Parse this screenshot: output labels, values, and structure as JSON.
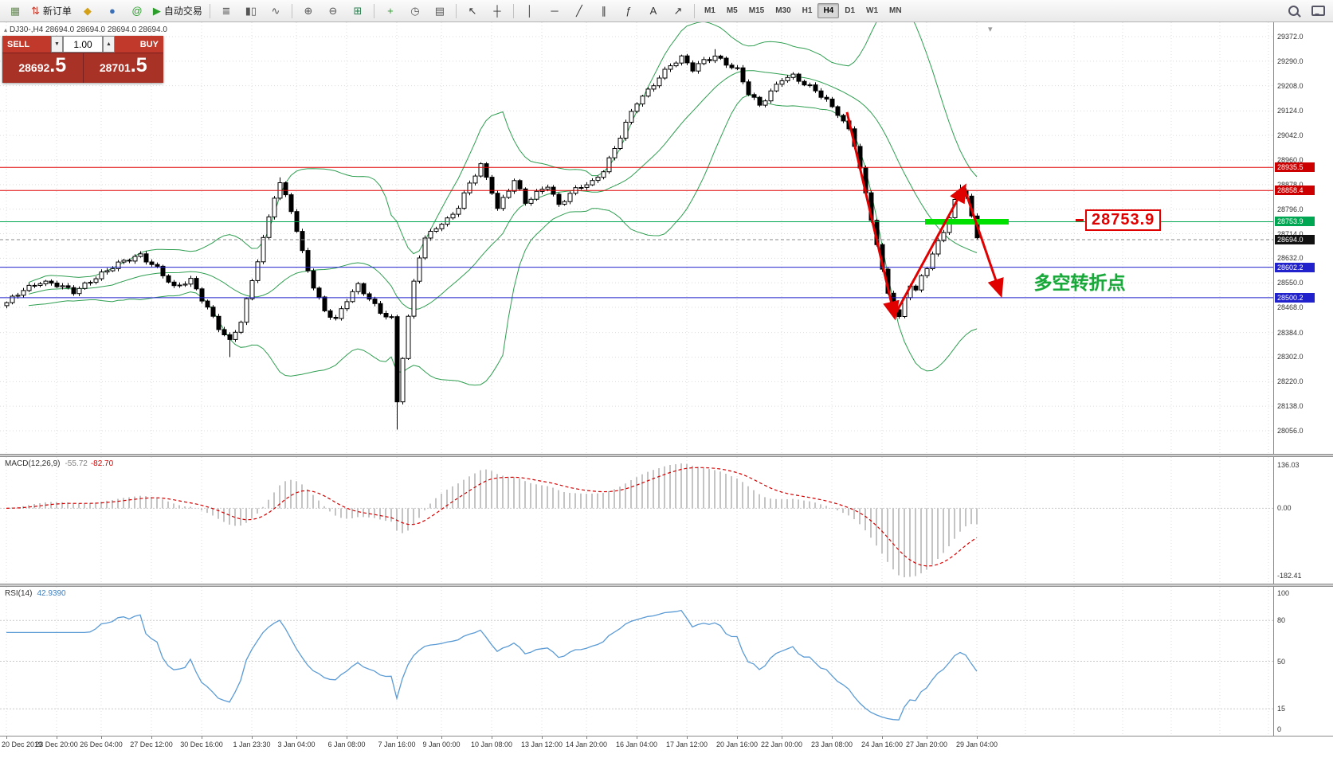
{
  "toolbar": {
    "new_order_label": "新订单",
    "autotrading_label": "自动交易",
    "timeframes": [
      "M1",
      "M5",
      "M15",
      "M30",
      "H1",
      "H4",
      "D1",
      "W1",
      "MN"
    ],
    "active_timeframe": "H4",
    "items": [
      {
        "t": "icon",
        "name": "new-chart-icon",
        "g": "▦",
        "c": "#6a8a5a"
      },
      {
        "t": "labeled",
        "name": "new-order-button",
        "bind": "new_order_label",
        "g": "⇅",
        "c": "#c0392b"
      },
      {
        "t": "icon",
        "name": "market-watch-icon",
        "g": "◆",
        "c": "#d4a017"
      },
      {
        "t": "icon",
        "name": "data-window-icon",
        "g": "●",
        "c": "#3b6fb5"
      },
      {
        "t": "icon",
        "name": "community-icon",
        "g": "@",
        "c": "#2a9d2a"
      },
      {
        "t": "labeled",
        "name": "autotrading-button",
        "bind": "autotrading_label",
        "g": "▶",
        "c": "#2a9d2a"
      },
      {
        "t": "sep"
      },
      {
        "t": "icon",
        "name": "bar-chart-icon",
        "g": "≣",
        "c": "#555555"
      },
      {
        "t": "icon",
        "name": "candlestick-chart-icon",
        "g": "▮▯",
        "c": "#555555"
      },
      {
        "t": "icon",
        "name": "line-chart-icon",
        "g": "∿",
        "c": "#555555"
      },
      {
        "t": "sep"
      },
      {
        "t": "icon",
        "name": "zoom-in-icon",
        "g": "⊕",
        "c": "#555555"
      },
      {
        "t": "icon",
        "name": "zoom-out-icon",
        "g": "⊖",
        "c": "#555555"
      },
      {
        "t": "icon",
        "name": "tile-windows-icon",
        "g": "⊞",
        "c": "#2a7d4f"
      },
      {
        "t": "sep"
      },
      {
        "t": "icon",
        "name": "indicators-icon",
        "g": "+",
        "c": "#2a9d2a"
      },
      {
        "t": "icon",
        "name": "periods-icon",
        "g": "◷",
        "c": "#555555"
      },
      {
        "t": "icon",
        "name": "templates-icon",
        "g": "▤",
        "c": "#555555"
      },
      {
        "t": "sep"
      },
      {
        "t": "icon",
        "name": "cursor-icon",
        "g": "↖",
        "c": "#333333"
      },
      {
        "t": "icon",
        "name": "crosshair-icon",
        "g": "┼",
        "c": "#333333"
      },
      {
        "t": "sep"
      },
      {
        "t": "icon",
        "name": "vertical-line-icon",
        "g": "│",
        "c": "#333333"
      },
      {
        "t": "icon",
        "name": "horizontal-line-icon",
        "g": "─",
        "c": "#333333"
      },
      {
        "t": "icon",
        "name": "trendline-icon",
        "g": "╱",
        "c": "#333333"
      },
      {
        "t": "icon",
        "name": "equidistant-channel-icon",
        "g": "∥",
        "c": "#333333"
      },
      {
        "t": "icon",
        "name": "fibonacci-icon",
        "g": "ƒ",
        "c": "#333333"
      },
      {
        "t": "icon",
        "name": "text-label-icon",
        "g": "A",
        "c": "#333333"
      },
      {
        "t": "icon",
        "name": "arrows-tool-icon",
        "g": "↗",
        "c": "#333333"
      },
      {
        "t": "sep"
      },
      {
        "t": "tfgroup"
      },
      {
        "t": "spacer"
      },
      {
        "t": "search"
      },
      {
        "t": "chat"
      }
    ]
  },
  "symbol_bar": {
    "text": "DJ30-,H4  28694.0 28694.0 28694.0 28694.0"
  },
  "order_panel": {
    "sell_label": "SELL",
    "buy_label": "BUY",
    "volume": "1.00",
    "sell_price": "28692.5",
    "buy_price": "28701.5"
  },
  "price_axis": {
    "labels": [
      "29372.0",
      "29290.0",
      "29208.0",
      "29124.0",
      "29042.0",
      "28960.0",
      "28878.0",
      "28796.0",
      "28714.0",
      "28632.0",
      "28550.0",
      "28468.0",
      "28384.0",
      "28302.0",
      "28220.0",
      "28138.0",
      "28056.0"
    ]
  },
  "time_axis": {
    "labels": [
      "20 Dec 2019",
      "23 Dec 20:00",
      "26 Dec 04:00",
      "27 Dec 12:00",
      "30 Dec 16:00",
      "1 Jan 23:30",
      "3 Jan 04:00",
      "6 Jan 08:00",
      "7 Jan 16:00",
      "9 Jan 00:00",
      "10 Jan 08:00",
      "13 Jan 12:00",
      "14 Jan 20:00",
      "16 Jan 04:00",
      "17 Jan 12:00",
      "20 Jan 16:00",
      "22 Jan 00:00",
      "23 Jan 08:00",
      "24 Jan 16:00",
      "27 Jan 20:00",
      "29 Jan 04:00"
    ]
  },
  "macd": {
    "name": "MACD(12,26,9)",
    "value_main": "-55.72",
    "value_signal": "-82.70",
    "scale_top": "136.03",
    "scale_zero": "0.00",
    "scale_bottom": "-182.41"
  },
  "rsi": {
    "name": "RSI(14)",
    "value": "42.9390",
    "scale": [
      "100",
      "80",
      "50",
      "15",
      "0"
    ],
    "levels": [
      80,
      50,
      15
    ]
  },
  "annotations": {
    "turning_point": "多空转折点",
    "price_callout": "28753.9"
  },
  "bid": {
    "price": 28694.0,
    "label": "28694.0"
  },
  "colors": {
    "candle_up": "#ffffff",
    "candle_down": "#000000",
    "candle_stroke": "#000000",
    "bollinger": "#2e9e50",
    "grid": "#dcdcdc",
    "macd_hist": "#c4c4c4",
    "macd_signal": "#d40000",
    "rsi_line": "#5b9bd5",
    "arrow": "#e00000",
    "highlight": "#00e000",
    "hline_red": "#e00000",
    "hline_green": "#00a651",
    "hline_blue": "#2222cc",
    "bid_tag": "#111111"
  },
  "chart_data": {
    "type": "candlestick",
    "symbol": "DJ30-",
    "timeframe": "H4",
    "price_range": [
      28056,
      29372
    ],
    "candle_count": 175,
    "close_waypoints": [
      [
        0,
        28480
      ],
      [
        3,
        28530
      ],
      [
        6,
        28555
      ],
      [
        9,
        28540
      ],
      [
        12,
        28520
      ],
      [
        15,
        28560
      ],
      [
        18,
        28590
      ],
      [
        21,
        28620
      ],
      [
        24,
        28645
      ],
      [
        27,
        28600
      ],
      [
        30,
        28530
      ],
      [
        33,
        28560
      ],
      [
        36,
        28470
      ],
      [
        38,
        28400
      ],
      [
        40,
        28350
      ],
      [
        42,
        28420
      ],
      [
        44,
        28560
      ],
      [
        46,
        28700
      ],
      [
        48,
        28840
      ],
      [
        49,
        28880
      ],
      [
        51,
        28790
      ],
      [
        53,
        28650
      ],
      [
        55,
        28540
      ],
      [
        57,
        28460
      ],
      [
        59,
        28425
      ],
      [
        61,
        28490
      ],
      [
        63,
        28540
      ],
      [
        65,
        28500
      ],
      [
        67,
        28455
      ],
      [
        69,
        28430
      ],
      [
        70,
        28150
      ],
      [
        71,
        28300
      ],
      [
        72,
        28430
      ],
      [
        73,
        28550
      ],
      [
        74,
        28640
      ],
      [
        75,
        28700
      ],
      [
        77,
        28740
      ],
      [
        79,
        28760
      ],
      [
        81,
        28800
      ],
      [
        83,
        28880
      ],
      [
        85,
        28945
      ],
      [
        87,
        28860
      ],
      [
        88,
        28800
      ],
      [
        90,
        28860
      ],
      [
        91,
        28890
      ],
      [
        93,
        28815
      ],
      [
        95,
        28850
      ],
      [
        97,
        28880
      ],
      [
        99,
        28810
      ],
      [
        101,
        28845
      ],
      [
        103,
        28870
      ],
      [
        105,
        28885
      ],
      [
        107,
        28930
      ],
      [
        109,
        29000
      ],
      [
        111,
        29080
      ],
      [
        113,
        29150
      ],
      [
        115,
        29190
      ],
      [
        117,
        29240
      ],
      [
        119,
        29280
      ],
      [
        121,
        29300
      ],
      [
        123,
        29260
      ],
      [
        125,
        29290
      ],
      [
        127,
        29310
      ],
      [
        129,
        29285
      ],
      [
        131,
        29260
      ],
      [
        133,
        29180
      ],
      [
        135,
        29140
      ],
      [
        137,
        29190
      ],
      [
        139,
        29235
      ],
      [
        141,
        29240
      ],
      [
        143,
        29210
      ],
      [
        145,
        29190
      ],
      [
        147,
        29160
      ],
      [
        149,
        29120
      ],
      [
        151,
        29060
      ],
      [
        152,
        29010
      ],
      [
        153,
        28930
      ],
      [
        154,
        28840
      ],
      [
        155,
        28760
      ],
      [
        156,
        28680
      ],
      [
        157,
        28590
      ],
      [
        158,
        28520
      ],
      [
        159,
        28470
      ],
      [
        160,
        28435
      ],
      [
        161,
        28500
      ],
      [
        162,
        28545
      ],
      [
        163,
        28520
      ],
      [
        164,
        28565
      ],
      [
        165,
        28600
      ],
      [
        166,
        28645
      ],
      [
        168,
        28725
      ],
      [
        170,
        28825
      ],
      [
        171,
        28862
      ],
      [
        172,
        28845
      ],
      [
        173,
        28765
      ],
      [
        174,
        28694
      ]
    ],
    "wick_overrides": [
      [
        40,
        "low",
        28302
      ],
      [
        49,
        "high",
        28902
      ],
      [
        70,
        "low",
        28060
      ],
      [
        127,
        "high",
        29330
      ],
      [
        171,
        "high",
        28878
      ]
    ],
    "bollinger": {
      "period": 20,
      "deviation": 2
    },
    "macd": {
      "fast": 12,
      "slow": 26,
      "signal": 9
    },
    "rsi": {
      "period": 14
    },
    "hlines": [
      {
        "price": 28935.5,
        "label": "28935.5",
        "color": "#e00000"
      },
      {
        "price": 28858.4,
        "label": "28858.4",
        "color": "#e00000"
      },
      {
        "price": 28753.9,
        "label": "28753.9",
        "color": "#00a651"
      },
      {
        "price": 28602.2,
        "label": "28602.2",
        "color": "#2222cc"
      },
      {
        "price": 28500.2,
        "label": "28500.2",
        "color": "#2222cc"
      }
    ],
    "arrows": [
      {
        "from": [
          151,
          29120
        ],
        "to": [
          159.5,
          28440
        ]
      },
      {
        "from": [
          159.5,
          28440
        ],
        "to": [
          172,
          28868
        ]
      },
      {
        "from": [
          172,
          28868
        ],
        "to": [
          178.5,
          28515
        ]
      }
    ],
    "highlight": {
      "price": 28753.9,
      "from_idx": 165,
      "to_idx": 180
    },
    "callout": {
      "idx": 192,
      "price": 28753.9
    },
    "note": {
      "idx": 184.5,
      "price": 28565
    }
  }
}
